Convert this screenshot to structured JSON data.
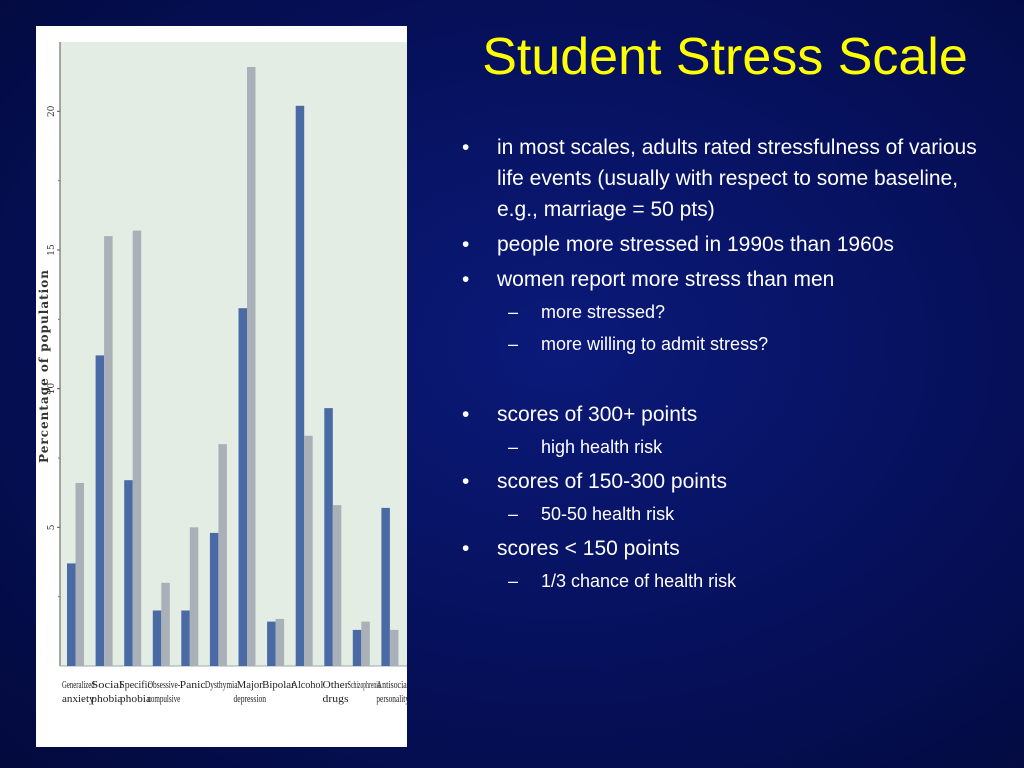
{
  "slide": {
    "title": "Student Stress Scale",
    "bullets": [
      {
        "level": 1,
        "text": "in most scales, adults rated stressfulness of various life events (usually with respect to some baseline, e.g., marriage = 50 pts)"
      },
      {
        "level": 1,
        "text": "people more stressed in 1990s than 1960s"
      },
      {
        "level": 1,
        "text": "women report more stress than men"
      },
      {
        "level": 2,
        "text": "more stressed?"
      },
      {
        "level": 2,
        "text": "more willing to admit stress?"
      },
      {
        "level": 0,
        "text": ""
      },
      {
        "level": 1,
        "text": "scores of 300+ points"
      },
      {
        "level": 2,
        "text": "high health risk"
      },
      {
        "level": 1,
        "text": "scores of 150-300 points"
      },
      {
        "level": 2,
        "text": "50-50 health risk"
      },
      {
        "level": 1,
        "text": "scores < 150 points"
      },
      {
        "level": 2,
        "text": "1/3 chance of health risk"
      }
    ],
    "bullet_marks": {
      "level1": "•",
      "level2": "–"
    }
  },
  "colors": {
    "series_a": "#4a6aa6",
    "series_b": "#aab0b8",
    "plot_bg": "#e4ede4",
    "title": "#ffff00",
    "text": "#ffffff"
  },
  "chart_data": {
    "type": "bar",
    "title": "",
    "xlabel": "",
    "ylabel": "Percentage of population",
    "ylim": [
      0,
      22.5
    ],
    "yticks": [
      "5",
      "10",
      "15",
      "20"
    ],
    "grid": false,
    "legend": "none",
    "categories": [
      [
        "Generalized",
        "anxiety"
      ],
      [
        "Social",
        "phobia"
      ],
      [
        "Specific",
        "phobia"
      ],
      [
        "Obsessive-",
        "compulsive"
      ],
      [
        "Panic"
      ],
      [
        "Dysthymia"
      ],
      [
        "Major",
        "depression"
      ],
      [
        "Bipolar"
      ],
      [
        "Alcohol"
      ],
      [
        "Other",
        "drugs"
      ],
      [
        "Schizophrenia"
      ],
      [
        "Antisocial",
        "personality"
      ]
    ],
    "series": [
      {
        "values": [
          3.7,
          11.2,
          6.7,
          2.0,
          2.0,
          4.8,
          12.9,
          1.6,
          20.2,
          9.3,
          1.3,
          5.7
        ]
      },
      {
        "values": [
          6.6,
          15.5,
          15.7,
          3.0,
          5.0,
          8.0,
          21.6,
          1.7,
          8.3,
          5.8,
          1.6,
          1.3
        ]
      }
    ]
  }
}
